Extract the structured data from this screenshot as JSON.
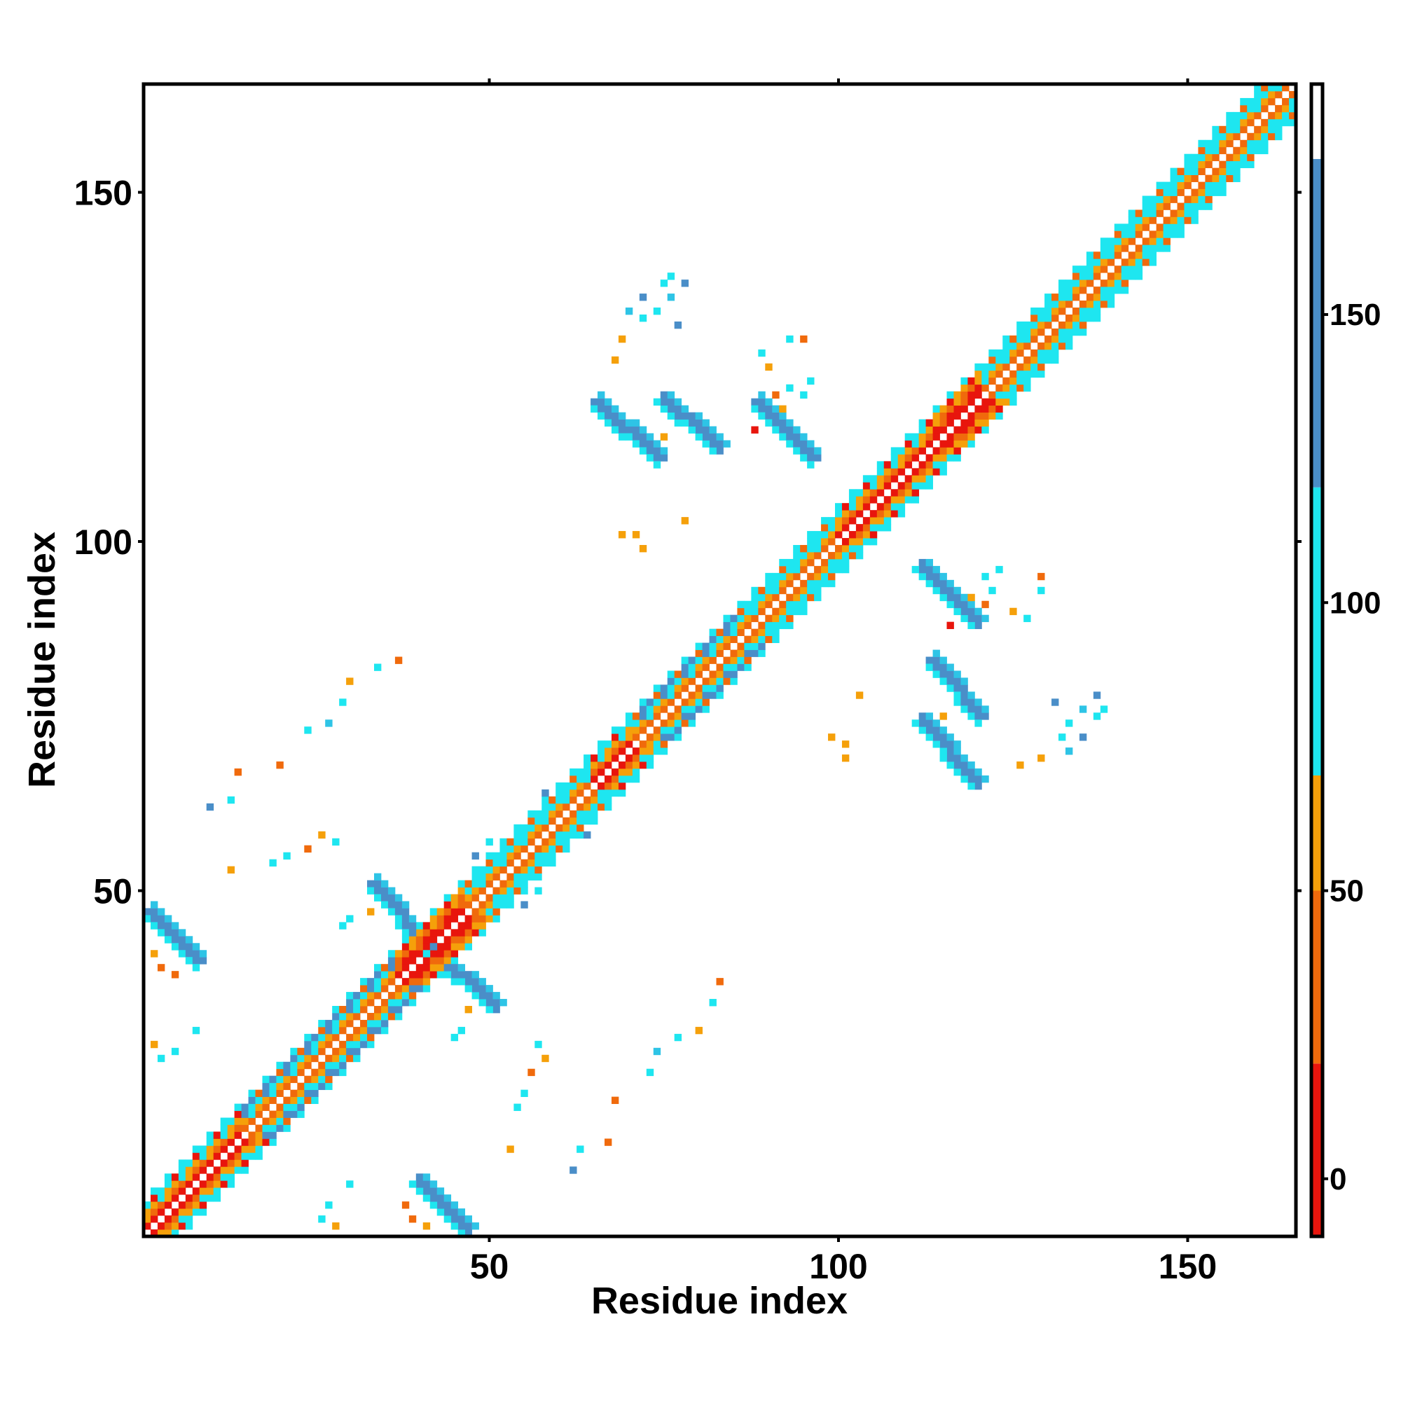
{
  "chart_data": {
    "type": "heatmap",
    "title": "",
    "xlabel": "Residue index",
    "ylabel": "Residue index",
    "xlim": [
      0.5,
      165.5
    ],
    "ylim": [
      0.5,
      165.5
    ],
    "x_ticks": [
      50,
      100,
      150
    ],
    "y_ticks": [
      50,
      100,
      150
    ],
    "x_tick_labels": [
      "50",
      "100",
      "150"
    ],
    "y_tick_labels": [
      "50",
      "100",
      "150"
    ],
    "grid": false,
    "colorbar": {
      "placement": "right",
      "range": [
        -10,
        190
      ],
      "ticks": [
        0,
        50,
        100,
        150
      ],
      "tick_labels": [
        "0",
        "50",
        "100",
        "150"
      ],
      "bands": [
        {
          "from": -10,
          "to": 20,
          "color": "#e8150d"
        },
        {
          "from": 20,
          "to": 50,
          "color": "#f06a0c"
        },
        {
          "from": 50,
          "to": 70,
          "color": "#f5a00a"
        },
        {
          "from": 70,
          "to": 120,
          "color": "#1ee6f0"
        },
        {
          "from": 120,
          "to": 177,
          "color": "#4a8ec8"
        },
        {
          "from": 177,
          "to": 190,
          "color": "#ffffff"
        }
      ]
    },
    "colors": {
      "red": "#e8150d",
      "orange": "#f06a0c",
      "amber": "#f5a00a",
      "cyan": "#1ee6f0",
      "sky": "#2ec4e6",
      "steel": "#4a8ec8"
    },
    "diagonal_bands": [
      {
        "from": 1,
        "to": 14,
        "sequence": [
          "red",
          "orange",
          "amber",
          "cyan"
        ]
      },
      {
        "from": 14,
        "to": 36,
        "sequence": [
          "orange",
          "amber",
          "cyan",
          "steel"
        ]
      },
      {
        "from": 36,
        "to": 46,
        "sequence": [
          "red",
          "red",
          "orange",
          "amber"
        ]
      },
      {
        "from": 46,
        "to": 64,
        "sequence": [
          "orange",
          "amber",
          "cyan",
          "cyan"
        ]
      },
      {
        "from": 64,
        "to": 70,
        "sequence": [
          "red",
          "orange",
          "amber",
          "cyan"
        ]
      },
      {
        "from": 70,
        "to": 86,
        "sequence": [
          "orange",
          "amber",
          "cyan",
          "steel"
        ]
      },
      {
        "from": 86,
        "to": 99,
        "sequence": [
          "orange",
          "amber",
          "cyan",
          "cyan"
        ]
      },
      {
        "from": 99,
        "to": 113,
        "sequence": [
          "red",
          "orange",
          "amber",
          "cyan"
        ]
      },
      {
        "from": 113,
        "to": 120,
        "sequence": [
          "red",
          "red",
          "orange",
          "amber"
        ]
      },
      {
        "from": 120,
        "to": 166,
        "sequence": [
          "orange",
          "amber",
          "cyan",
          "cyan"
        ]
      }
    ],
    "antiparallel_contacts": [
      {
        "i": [
          1,
          8
        ],
        "j": [
          40,
          47
        ],
        "color": "steel"
      },
      {
        "i": [
          33,
          41
        ],
        "j": [
          42,
          51
        ],
        "color": "steel"
      },
      {
        "i": [
          65,
          74
        ],
        "j": [
          112,
          120
        ],
        "color": "steel"
      },
      {
        "i": [
          88,
          96
        ],
        "j": [
          112,
          120
        ],
        "color": "steel"
      },
      {
        "i": [
          113,
          120
        ],
        "j": [
          75,
          83
        ],
        "color": "steel"
      }
    ],
    "scattered_contacts": [
      [
        26,
        3,
        "cyan"
      ],
      [
        27,
        5,
        "cyan"
      ],
      [
        28,
        2,
        "amber"
      ],
      [
        30,
        8,
        "cyan"
      ],
      [
        53,
        13,
        "amber"
      ],
      [
        54,
        19,
        "cyan"
      ],
      [
        55,
        21,
        "cyan"
      ],
      [
        56,
        24,
        "orange"
      ],
      [
        57,
        28,
        "cyan"
      ],
      [
        58,
        26,
        "amber"
      ],
      [
        62,
        10,
        "steel"
      ],
      [
        63,
        13,
        "cyan"
      ],
      [
        67,
        14,
        "orange"
      ],
      [
        68,
        20,
        "orange"
      ],
      [
        73,
        24,
        "cyan"
      ],
      [
        74,
        27,
        "sky"
      ],
      [
        77,
        29,
        "cyan"
      ],
      [
        80,
        30,
        "amber"
      ],
      [
        82,
        34,
        "cyan"
      ],
      [
        83,
        37,
        "orange"
      ],
      [
        45,
        29,
        "cyan"
      ],
      [
        46,
        30,
        "cyan"
      ],
      [
        47,
        33,
        "amber"
      ],
      [
        50,
        36,
        "cyan"
      ],
      [
        48,
        55,
        "steel"
      ],
      [
        49,
        53,
        "cyan"
      ],
      [
        50,
        57,
        "cyan"
      ],
      [
        52,
        56,
        "cyan"
      ],
      [
        38,
        5,
        "orange"
      ],
      [
        39,
        3,
        "orange"
      ],
      [
        41,
        2,
        "amber"
      ],
      [
        43,
        5,
        "cyan"
      ],
      [
        60,
        62,
        "cyan"
      ],
      [
        58,
        64,
        "steel"
      ],
      [
        61,
        62,
        "cyan"
      ],
      [
        126,
        68,
        "amber"
      ],
      [
        133,
        70,
        "sky"
      ],
      [
        135,
        72,
        "steel"
      ],
      [
        137,
        75,
        "cyan"
      ],
      [
        131,
        77,
        "steel"
      ],
      [
        138,
        76,
        "cyan"
      ],
      [
        127,
        89,
        "cyan"
      ],
      [
        125,
        90,
        "amber"
      ],
      [
        121,
        91,
        "orange"
      ],
      [
        119,
        92,
        "amber"
      ],
      [
        116,
        88,
        "red"
      ],
      [
        122,
        93,
        "cyan"
      ],
      [
        129,
        95,
        "orange"
      ],
      [
        101,
        69,
        "amber"
      ],
      [
        72,
        99,
        99
      ],
      [
        71,
        101,
        "amber"
      ],
      [
        94,
        113,
        "orange"
      ],
      [
        92,
        115,
        "sky"
      ],
      [
        90,
        117,
        "cyan"
      ],
      [
        89,
        120,
        "red"
      ],
      [
        95,
        121,
        "cyan"
      ],
      [
        96,
        123,
        "cyan"
      ],
      [
        93,
        129,
        "cyan"
      ],
      [
        74,
        133,
        "cyan"
      ],
      [
        76,
        135,
        "sky"
      ],
      [
        78,
        137,
        "steel"
      ],
      [
        72,
        132,
        "cyan"
      ],
      [
        69,
        129,
        "amber"
      ],
      [
        74,
        113,
        "red"
      ],
      [
        75,
        115,
        "amber"
      ],
      [
        78,
        103,
        "amber"
      ]
    ]
  }
}
